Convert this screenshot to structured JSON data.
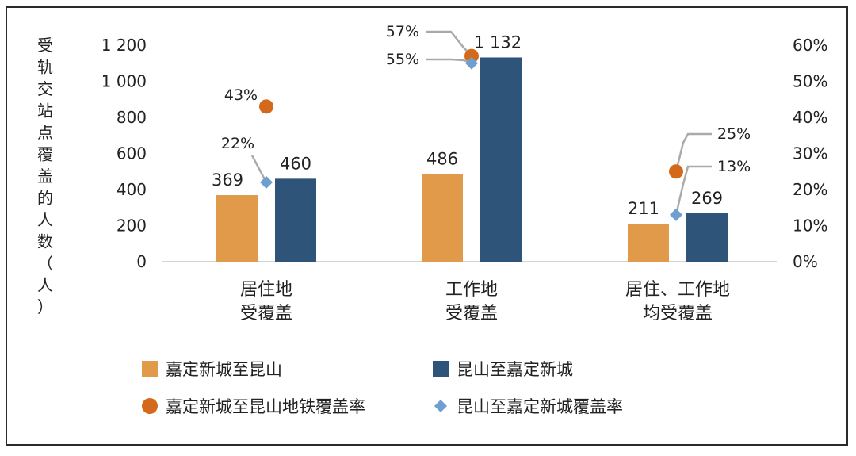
{
  "chart_data": {
    "type": "bar",
    "categories": [
      [
        "居住地",
        "受覆盖"
      ],
      [
        "工作地",
        "受覆盖"
      ],
      [
        "居住、工作地",
        "均受覆盖"
      ]
    ],
    "series": [
      {
        "name": "嘉定新城至昆山",
        "kind": "bar",
        "axis": "left",
        "color": "#E09A4A",
        "values": [
          369,
          486,
          211
        ],
        "labels": [
          "369",
          "486",
          "211"
        ]
      },
      {
        "name": "昆山至嘉定新城",
        "kind": "bar",
        "axis": "left",
        "color": "#2E5479",
        "values": [
          460,
          1132,
          269
        ],
        "labels": [
          "460",
          "1 132",
          "269"
        ]
      },
      {
        "name": "嘉定新城至昆山地铁覆盖率",
        "kind": "marker-circle",
        "axis": "right",
        "color": "#D4691C",
        "values": [
          43,
          57,
          25
        ],
        "labels": [
          "43%",
          "57%",
          "25%"
        ]
      },
      {
        "name": "昆山至嘉定新城覆盖率",
        "kind": "marker-diamond",
        "axis": "right",
        "color": "#6F9FD0",
        "values": [
          22,
          55,
          13
        ],
        "labels": [
          "22%",
          "55%",
          "13%"
        ]
      }
    ],
    "ylabel": [
      "受",
      "轨",
      "交",
      "站",
      "点",
      "覆",
      "盖",
      "的",
      "人",
      "数",
      "（",
      "人",
      "）"
    ],
    "ylim": [
      0,
      1200
    ],
    "yticks": [
      "0",
      "200",
      "400",
      "600",
      "800",
      "1 000",
      "1 200"
    ],
    "y2lim": [
      0,
      60
    ],
    "y2ticks": [
      "0%",
      "10%",
      "20%",
      "30%",
      "40%",
      "50%",
      "60%"
    ],
    "grid": false,
    "legend_position": "bottom"
  }
}
